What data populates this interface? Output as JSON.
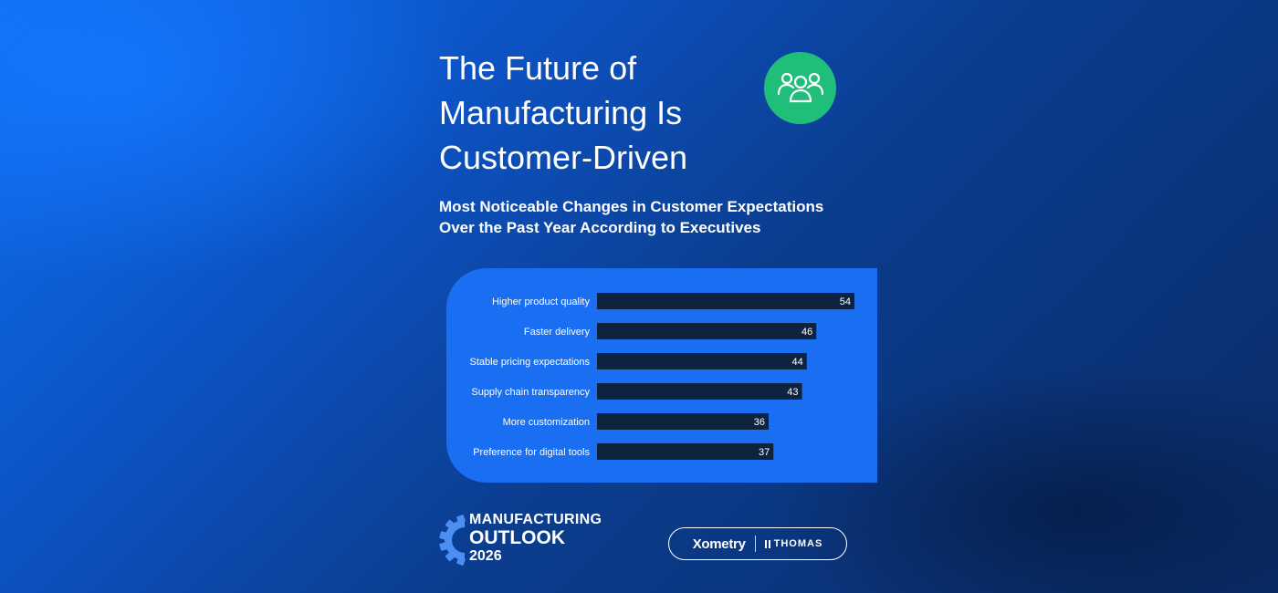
{
  "header": {
    "title_lines": [
      "The Future of",
      "Manufacturing Is",
      "Customer-Driven"
    ],
    "badge_icon": "people-group-icon"
  },
  "subtitle_lines": [
    "Most Noticeable Changes in Customer Expectations",
    "Over the Past Year According to Executives"
  ],
  "chart_data": {
    "type": "bar",
    "orientation": "horizontal",
    "categories": [
      "Higher product quality",
      "Faster delivery",
      "Stable pricing expectations",
      "Supply chain transparency",
      "More customization",
      "Preference for digital tools"
    ],
    "values": [
      54,
      46,
      44,
      43,
      36,
      37
    ],
    "xlim": [
      0,
      54
    ],
    "data_labels": true,
    "grid": false,
    "bar_color": "#0d2340",
    "label_color": "#ffffff"
  },
  "footer": {
    "outlook_lines": [
      "MANUFACTURING",
      "OUTLOOK",
      "2026"
    ],
    "outlook_icon": "gear-icon",
    "brands": {
      "xometry": "Xometry",
      "thomas": "THOMAS"
    }
  },
  "colors": {
    "badge_green": "#1fbf7a",
    "panel_blue": "#1a6ef2",
    "gear_blue": "#4b8ff2"
  }
}
